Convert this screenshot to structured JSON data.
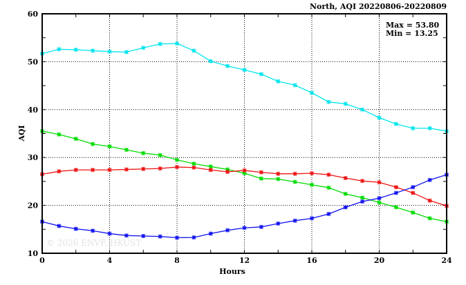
{
  "chart_data": {
    "type": "line",
    "title": "North, AQI 20220806-20220809",
    "xlabel": "Hours",
    "ylabel": "AQI",
    "xlim": [
      0,
      24
    ],
    "ylim": [
      10,
      60
    ],
    "xticks": [
      "0",
      "4",
      "8",
      "12",
      "16",
      "20",
      "24"
    ],
    "yticks": [
      "10",
      "20",
      "30",
      "40",
      "50",
      "60"
    ],
    "grid": true,
    "annotations": [
      "Max = 53.80",
      "Min = 13.25"
    ],
    "watermark": "© 2026  ENVF, HKUST",
    "x": [
      0,
      1,
      2,
      3,
      4,
      5,
      6,
      7,
      8,
      9,
      10,
      11,
      12,
      13,
      14,
      15,
      16,
      17,
      18,
      19,
      20,
      21,
      22,
      23,
      24
    ],
    "series": [
      {
        "name": "cyan",
        "color": "#00e5ee",
        "values": [
          51.7,
          52.6,
          52.5,
          52.3,
          52.1,
          52.0,
          52.9,
          53.7,
          53.8,
          52.3,
          50.1,
          49.1,
          48.3,
          47.4,
          45.9,
          45.1,
          43.5,
          41.6,
          41.2,
          40.0,
          38.3,
          37.0,
          36.1,
          36.1,
          35.5
        ]
      },
      {
        "name": "green",
        "color": "#00dd00",
        "values": [
          35.5,
          34.8,
          33.9,
          32.8,
          32.3,
          31.6,
          30.9,
          30.5,
          29.5,
          28.7,
          28.1,
          27.5,
          26.7,
          25.6,
          25.5,
          24.9,
          24.3,
          23.7,
          22.4,
          21.6,
          20.6,
          19.6,
          18.5,
          17.3,
          16.6
        ]
      },
      {
        "name": "red",
        "color": "#ee1111",
        "values": [
          26.5,
          27.1,
          27.4,
          27.4,
          27.4,
          27.5,
          27.6,
          27.7,
          28.0,
          27.9,
          27.4,
          27.0,
          27.3,
          26.9,
          26.6,
          26.6,
          26.7,
          26.4,
          25.7,
          25.1,
          24.8,
          23.8,
          22.6,
          21.0,
          19.9
        ]
      },
      {
        "name": "blue",
        "color": "#1111ee",
        "values": [
          16.6,
          15.7,
          15.1,
          14.7,
          14.1,
          13.7,
          13.6,
          13.5,
          13.25,
          13.3,
          14.1,
          14.8,
          15.3,
          15.5,
          16.2,
          16.8,
          17.3,
          18.2,
          19.6,
          20.8,
          21.5,
          22.6,
          23.8,
          25.3,
          26.4
        ]
      }
    ]
  }
}
